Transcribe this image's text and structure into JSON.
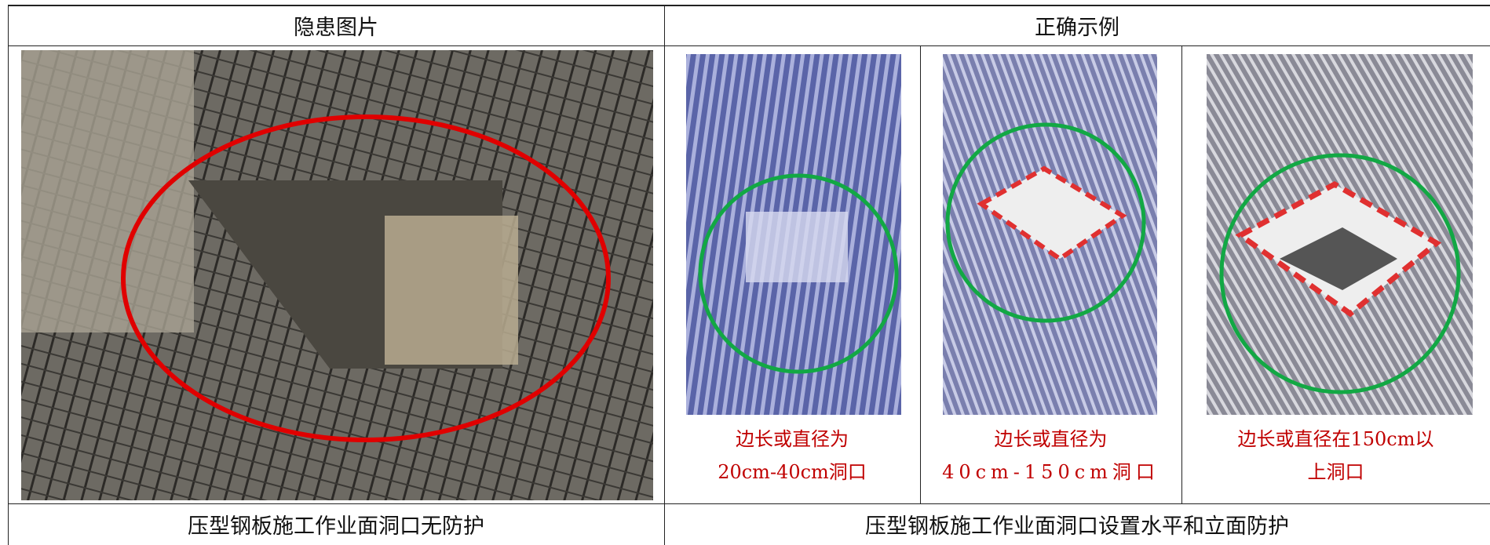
{
  "table": {
    "header": [
      "隐患图片",
      "正确示例"
    ],
    "examples": [
      {
        "caption": [
          "边长或直径为",
          "20cm-40cm洞口"
        ]
      },
      {
        "caption": [
          "边长或直径为",
          "40cm-150cm洞口"
        ]
      },
      {
        "caption": [
          "边长或直径在150cm以",
          "上洞口"
        ]
      }
    ],
    "footer": [
      "压型钢板施工作业面洞口无防护",
      "压型钢板施工作业面洞口设置水平和立面防护"
    ]
  }
}
